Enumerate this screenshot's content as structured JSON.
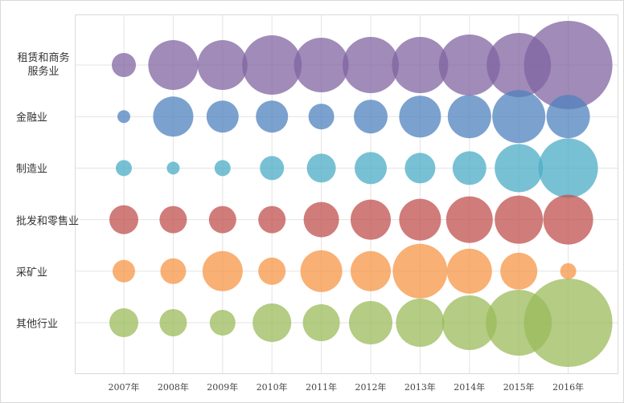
{
  "chart_data": {
    "type": "bubble",
    "categories": [
      "2007年",
      "2008年",
      "2009年",
      "2010年",
      "2011年",
      "2012年",
      "2013年",
      "2014年",
      "2015年",
      "2016年"
    ],
    "grid": true,
    "series": [
      {
        "name": "租赁和商务服务业",
        "color": "#8064a2",
        "sizes": [
          225,
          961,
          961,
          1369,
          1156,
          1225,
          1225,
          1444,
          1600,
          3025
        ]
      },
      {
        "name": "金融业",
        "color": "#4f81bd",
        "sizes": [
          64,
          625,
          400,
          400,
          256,
          441,
          676,
          729,
          1089,
          729
        ]
      },
      {
        "name": "制造业",
        "color": "#4bacc6",
        "sizes": [
          100,
          64,
          100,
          225,
          324,
          400,
          361,
          441,
          900,
          1369
        ]
      },
      {
        "name": "批发和零售业",
        "color": "#c0504d",
        "sizes": [
          324,
          289,
          289,
          289,
          484,
          625,
          676,
          841,
          900,
          961
        ]
      },
      {
        "name": "采矿业",
        "color": "#f79646",
        "sizes": [
          196,
          256,
          625,
          289,
          676,
          625,
          1156,
          784,
          529,
          100
        ]
      },
      {
        "name": "其他行业",
        "color": "#9bbb59",
        "sizes": [
          324,
          289,
          256,
          576,
          529,
          729,
          900,
          1156,
          1681,
          3025
        ]
      }
    ]
  }
}
